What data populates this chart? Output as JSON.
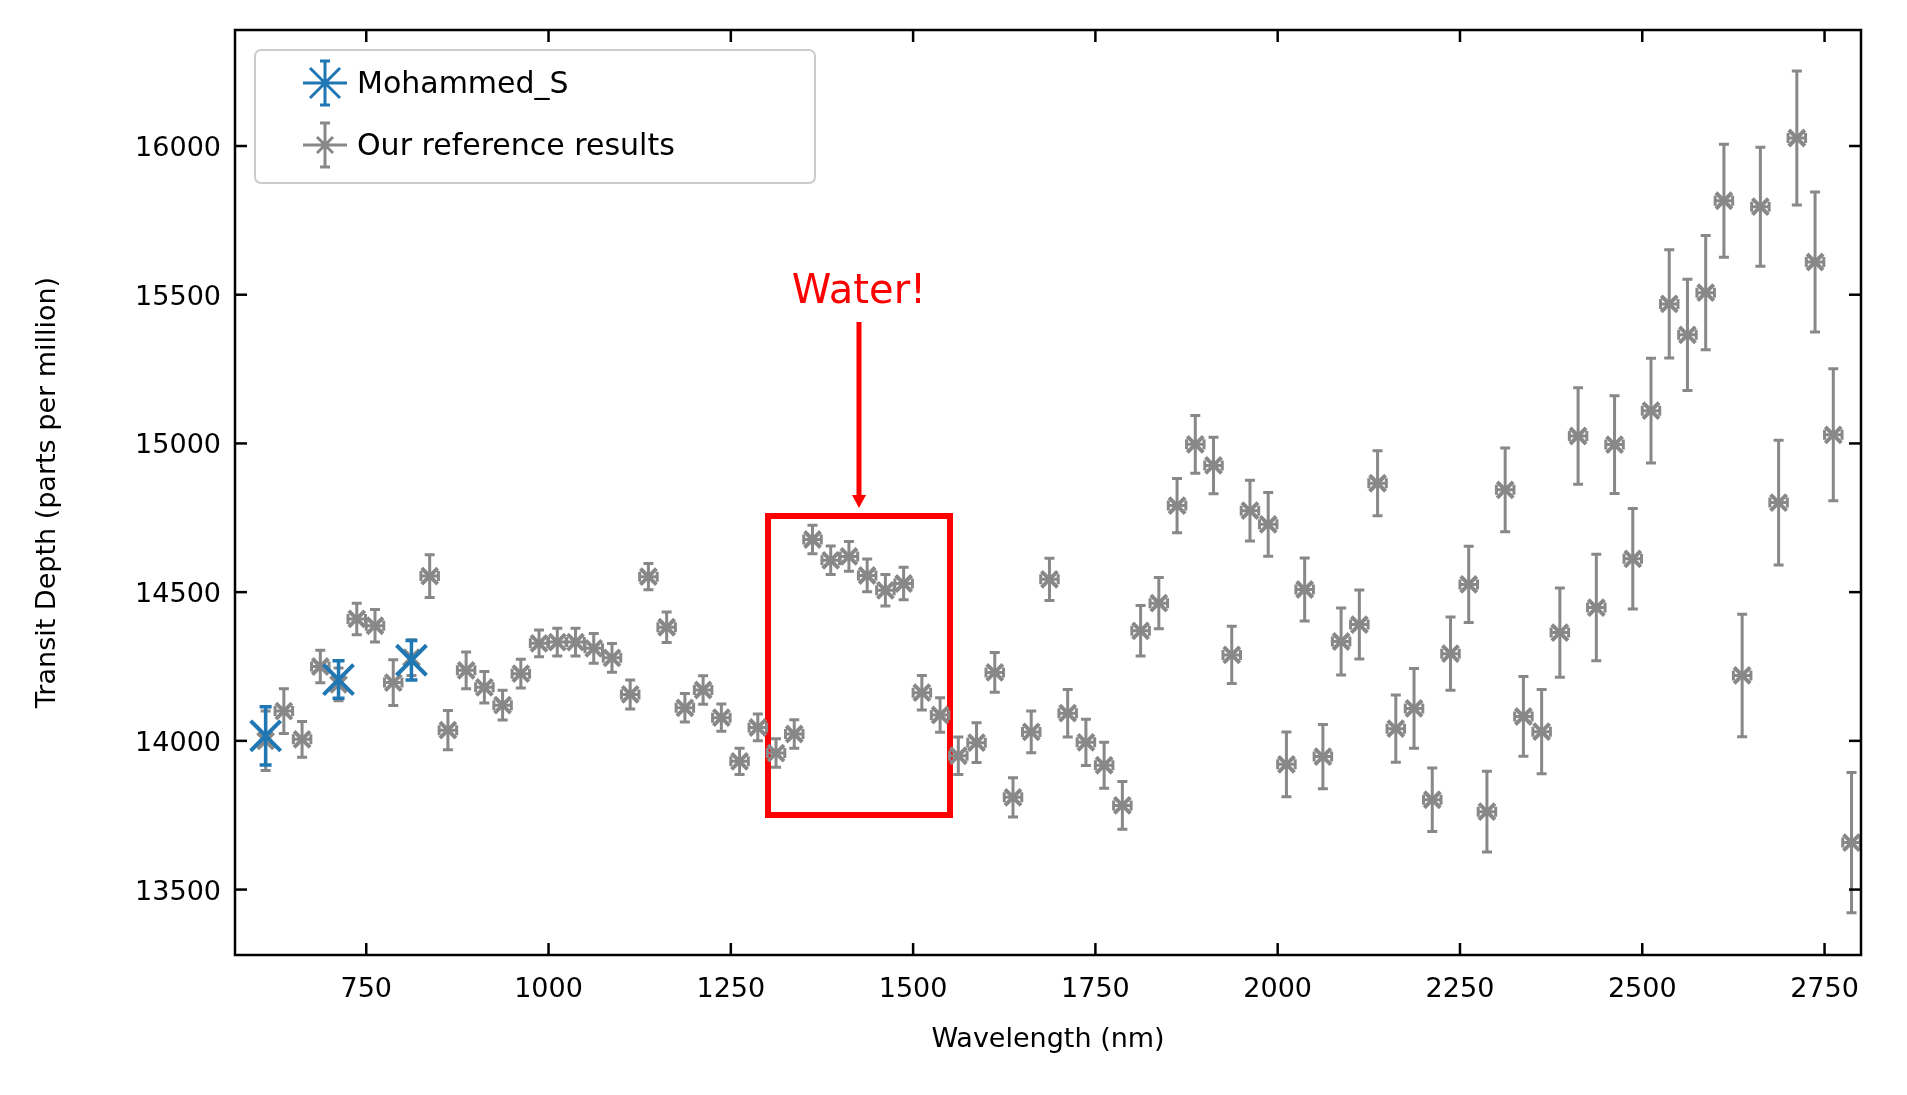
{
  "chart_data": {
    "type": "scatter",
    "xlabel": "Wavelength (nm)",
    "ylabel": "Transit Depth (parts per million)",
    "xlim": [
      570,
      2800
    ],
    "ylim": [
      13280,
      16390
    ],
    "xticks": [
      750,
      1000,
      1250,
      1500,
      1750,
      2000,
      2250,
      2500,
      2750
    ],
    "yticks": [
      13500,
      14000,
      14500,
      15000,
      15500,
      16000
    ],
    "grid": false,
    "legend": "top left",
    "marker": "cross",
    "series": [
      {
        "name": "Mohammed_S",
        "color": "#1f77b4",
        "x": [
          612,
          712,
          812
        ],
        "values": [
          14017,
          14206,
          14271
        ],
        "errors": [
          98,
          63,
          66
        ]
      },
      {
        "name": "Our reference results",
        "color": "#888888",
        "x": [
          612,
          637,
          662,
          687,
          712,
          737,
          762,
          787,
          812,
          837,
          862,
          887,
          912,
          937,
          962,
          987,
          1012,
          1037,
          1062,
          1087,
          1112,
          1137,
          1162,
          1187,
          1212,
          1237,
          1262,
          1287,
          1312,
          1337,
          1362,
          1387,
          1412,
          1437,
          1462,
          1487,
          1512,
          1537,
          1562,
          1587,
          1612,
          1637,
          1662,
          1687,
          1712,
          1737,
          1762,
          1787,
          1812,
          1837,
          1862,
          1887,
          1912,
          1937,
          1962,
          1987,
          2012,
          2037,
          2062,
          2087,
          2112,
          2137,
          2162,
          2187,
          2212,
          2237,
          2262,
          2287,
          2312,
          2337,
          2362,
          2387,
          2412,
          2437,
          2462,
          2487,
          2512,
          2537,
          2562,
          2587,
          2612,
          2637,
          2662,
          2687,
          2712,
          2737,
          2762,
          2787
        ],
        "values": [
          14000,
          14100,
          14005,
          14250,
          14190,
          14410,
          14387,
          14196,
          14280,
          14554,
          14036,
          14237,
          14180,
          14120,
          14226,
          14328,
          14332,
          14332,
          14311,
          14279,
          14156,
          14552,
          14382,
          14111,
          14171,
          14078,
          13931,
          14045,
          13959,
          14023,
          14677,
          14607,
          14620,
          14556,
          14506,
          14529,
          14162,
          14087,
          13950,
          13994,
          14230,
          13810,
          14030,
          14543,
          14093,
          13995,
          13918,
          13783,
          14370,
          14463,
          14791,
          14997,
          14926,
          14289,
          14774,
          14728,
          13921,
          14509,
          13947,
          14334,
          14391,
          14866,
          14041,
          14109,
          13802,
          14293,
          14526,
          13762,
          14844,
          14082,
          14031,
          14364,
          15025,
          14448,
          14996,
          14612,
          15110,
          15469,
          15365,
          15507,
          15816,
          14220,
          15796,
          14801,
          16027,
          15610,
          15029,
          13658
        ],
        "errors": [
          100,
          75,
          60,
          55,
          55,
          53,
          55,
          77,
          60,
          72,
          66,
          62,
          53,
          50,
          48,
          45,
          47,
          47,
          50,
          48,
          49,
          44,
          51,
          48,
          48,
          46,
          44,
          45,
          48,
          48,
          48,
          48,
          50,
          55,
          53,
          55,
          58,
          58,
          63,
          67,
          67,
          66,
          70,
          71,
          80,
          78,
          77,
          80,
          85,
          86,
          91,
          97,
          95,
          96,
          102,
          107,
          109,
          106,
          108,
          113,
          116,
          109,
          113,
          134,
          107,
          123,
          128,
          136,
          141,
          134,
          142,
          150,
          162,
          179,
          164,
          169,
          176,
          182,
          187,
          192,
          190,
          206,
          200,
          210,
          225,
          235,
          222,
          236
        ],
        "xerrors": [
          null,
          12,
          12,
          12,
          null,
          12,
          12,
          12,
          null,
          12,
          12,
          12,
          12,
          12,
          12,
          12,
          12,
          12,
          12,
          12,
          12,
          12,
          12,
          12,
          12,
          12,
          12,
          12,
          12,
          12,
          12,
          12,
          12,
          12,
          12,
          12,
          12,
          12,
          12,
          12,
          12,
          12,
          12,
          12,
          12,
          12,
          12,
          12,
          12,
          12,
          12,
          12,
          12,
          12,
          12,
          12,
          12,
          12,
          12,
          12,
          12,
          12,
          12,
          12,
          12,
          12,
          12,
          12,
          12,
          12,
          12,
          12,
          12,
          12,
          12,
          12,
          12,
          12,
          12,
          12,
          12,
          12,
          12,
          12,
          12,
          12,
          12,
          12
        ]
      }
    ],
    "annotations": [
      "Water!"
    ]
  }
}
